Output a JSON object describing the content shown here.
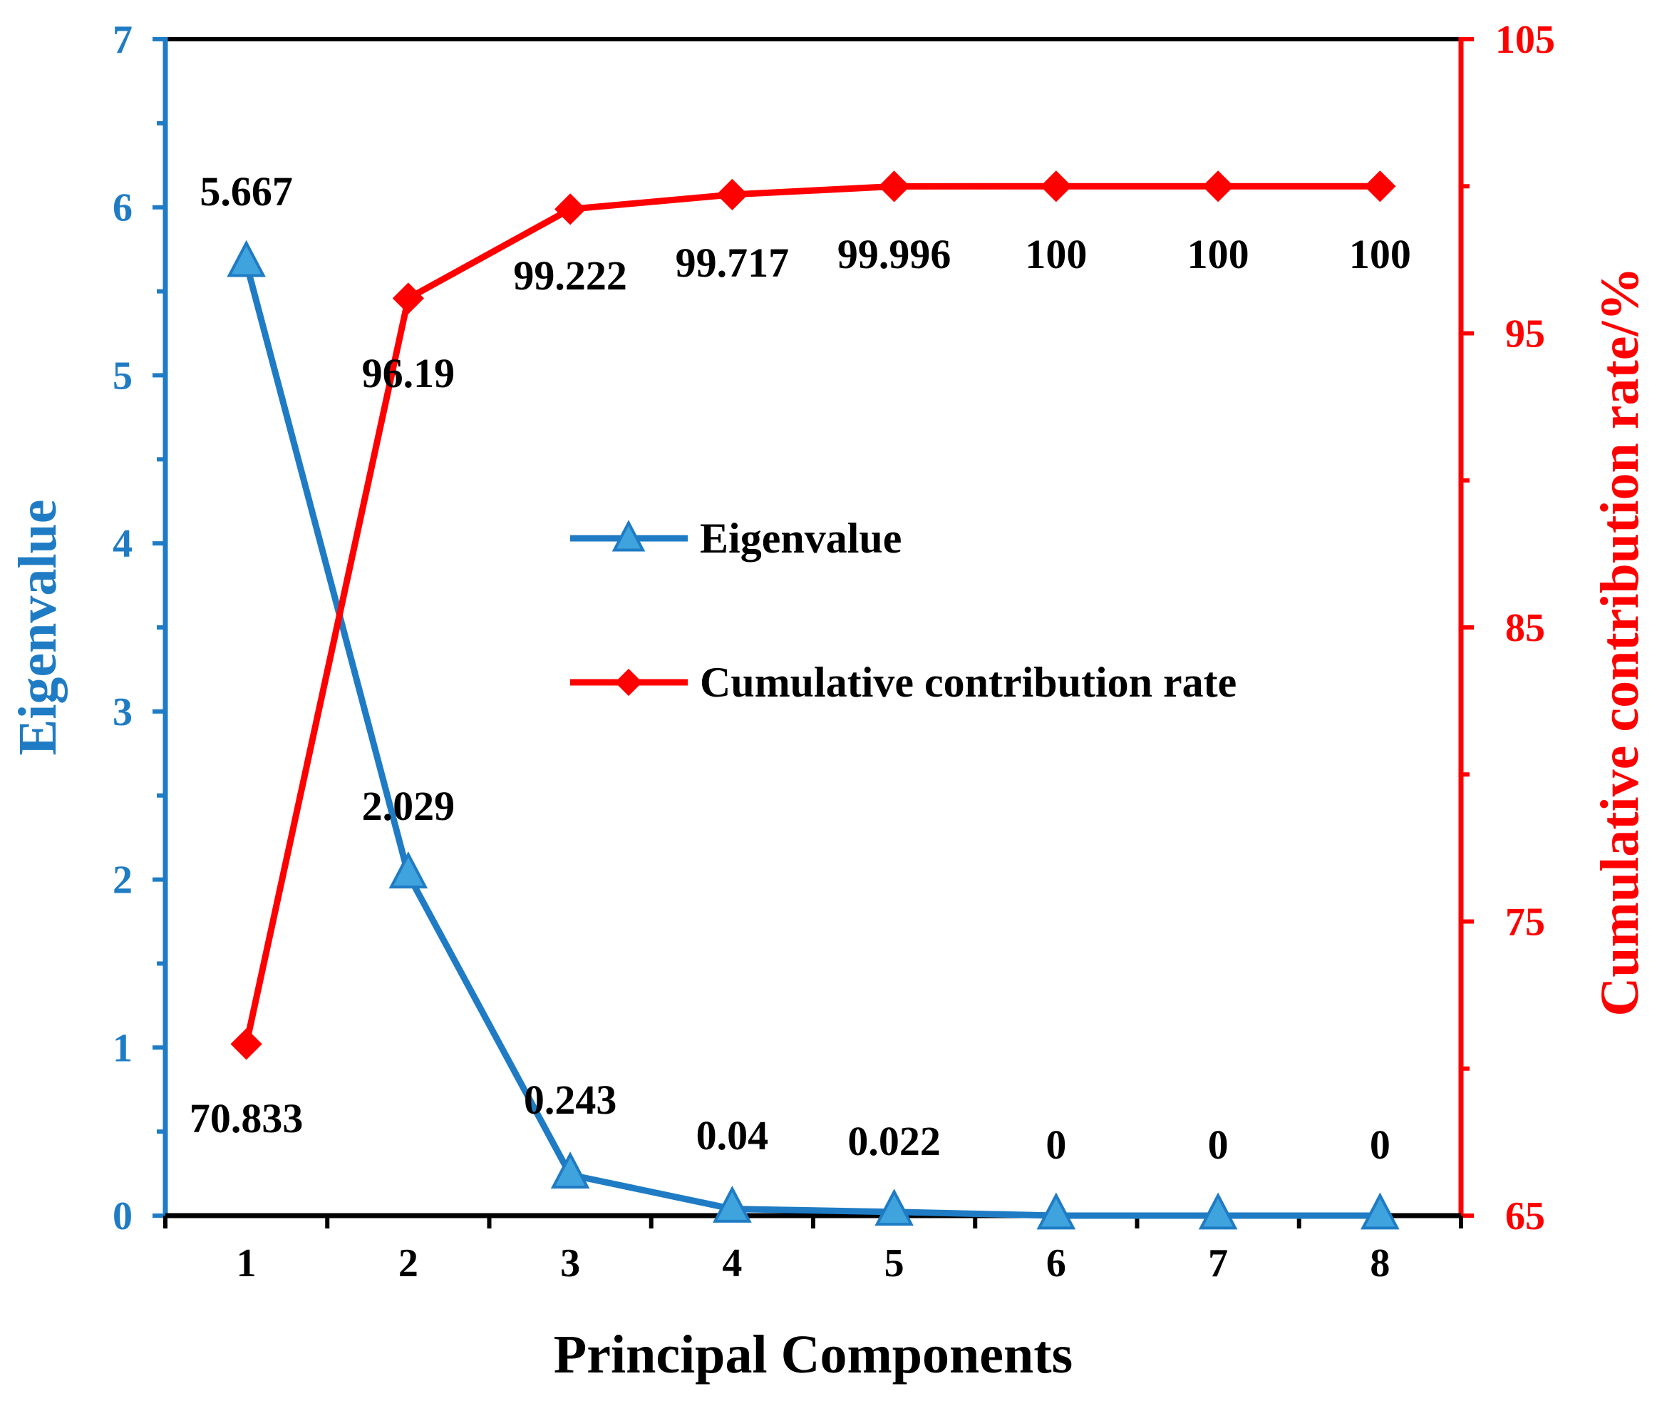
{
  "chart_data": {
    "type": "line",
    "xlabel": "Principal Components",
    "ylabel": "Eigenvalue",
    "y2label": "Cumulative contribution rate/%",
    "categories": [
      "1",
      "2",
      "3",
      "4",
      "5",
      "6",
      "7",
      "8"
    ],
    "ylim": [
      0,
      7
    ],
    "y2lim": [
      65,
      105
    ],
    "yticks": [
      "0",
      "1",
      "2",
      "3",
      "4",
      "5",
      "6",
      "7"
    ],
    "y2ticks": [
      "65",
      "75",
      "85",
      "95",
      "105"
    ],
    "legend_position": "center",
    "colors": {
      "eigen": "#1f7cc4",
      "eigen_marker": "#3fa3dd",
      "cumulative": "#ff0000",
      "axis_left": "#1f7cc4",
      "axis_right": "#ff0000"
    },
    "series": [
      {
        "name": "Eigenvalue",
        "axis": "left",
        "marker": "triangle",
        "values": [
          5.667,
          2.029,
          0.243,
          0.04,
          0.022,
          0,
          0,
          0
        ],
        "labels": [
          "5.667",
          "2.029",
          "0.243",
          "0.04",
          "0.022",
          "0",
          "0",
          "0"
        ]
      },
      {
        "name": "Cumulative contribution rate",
        "axis": "right",
        "marker": "diamond",
        "values": [
          70.833,
          96.19,
          99.222,
          99.717,
          99.996,
          100,
          100,
          100
        ],
        "labels": [
          "70.833",
          "96.19",
          "99.222",
          "99.717",
          "99.996",
          "100",
          "100",
          "100"
        ]
      }
    ]
  }
}
